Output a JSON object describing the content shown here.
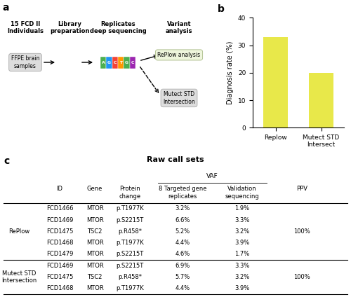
{
  "chart_data": [
    {
      "type": "diagram",
      "panel": "a",
      "steps": [
        "15 FCD II\nIndividuals",
        "Library\npreparation",
        "Replicates\ndeep sequencing",
        "Variant\nanalysis"
      ],
      "annotations": [
        "FFPE brain\nsamples",
        "RePlow analysis",
        "Mutect STD\nIntersection"
      ],
      "sequence": [
        "A",
        "G",
        "C",
        "T",
        "G",
        "C"
      ],
      "colors": [
        "#4caf50",
        "#2196f3",
        "#f44336",
        "#ff9800",
        "#4caf50",
        "#9c27b0"
      ]
    },
    {
      "type": "bar",
      "panel": "b",
      "categories": [
        "Replow",
        "Mutect STD\nIntersect"
      ],
      "values": [
        33,
        20
      ],
      "color": "#e8e84a",
      "ylabel": "Diagnosis rate (%)",
      "ylim": [
        0,
        40
      ],
      "yticks": [
        0,
        10,
        20,
        30,
        40
      ]
    },
    {
      "type": "table",
      "panel": "c",
      "title": "Raw call sets",
      "column_group": "VAF",
      "columns": [
        "ID",
        "Gene",
        "Protein\nchange",
        "8 Targeted gene\nreplicates",
        "Validation\nsequencing",
        "PPV"
      ],
      "groups": [
        {
          "name": "RePlow",
          "rows": [
            [
              "FCD1466",
              "MTOR",
              "p.T1977K",
              "3.2%",
              "1.9%",
              null
            ],
            [
              "FCD1469",
              "MTOR",
              "p.S2215T",
              "6.6%",
              "3.3%",
              null
            ],
            [
              "FCD1475",
              "TSC2",
              "p.R458*",
              "5.2%",
              "3.2%",
              "100%"
            ],
            [
              "FCD1468",
              "MTOR",
              "p.T1977K",
              "4.4%",
              "3.9%",
              null
            ],
            [
              "FCD1479",
              "MTOR",
              "p.S2215T",
              "4.6%",
              "1.7%",
              null
            ]
          ]
        },
        {
          "name": "Mutect STD\nIntersection",
          "rows": [
            [
              "FCD1469",
              "MTOR",
              "p.S2215T",
              "6.9%",
              "3.3%",
              null
            ],
            [
              "FCD1475",
              "TSC2",
              "p.R458*",
              "5.7%",
              "3.2%",
              "100%"
            ],
            [
              "FCD1468",
              "MTOR",
              "p.T1977K",
              "4.4%",
              "3.9%",
              null
            ]
          ]
        }
      ]
    }
  ]
}
